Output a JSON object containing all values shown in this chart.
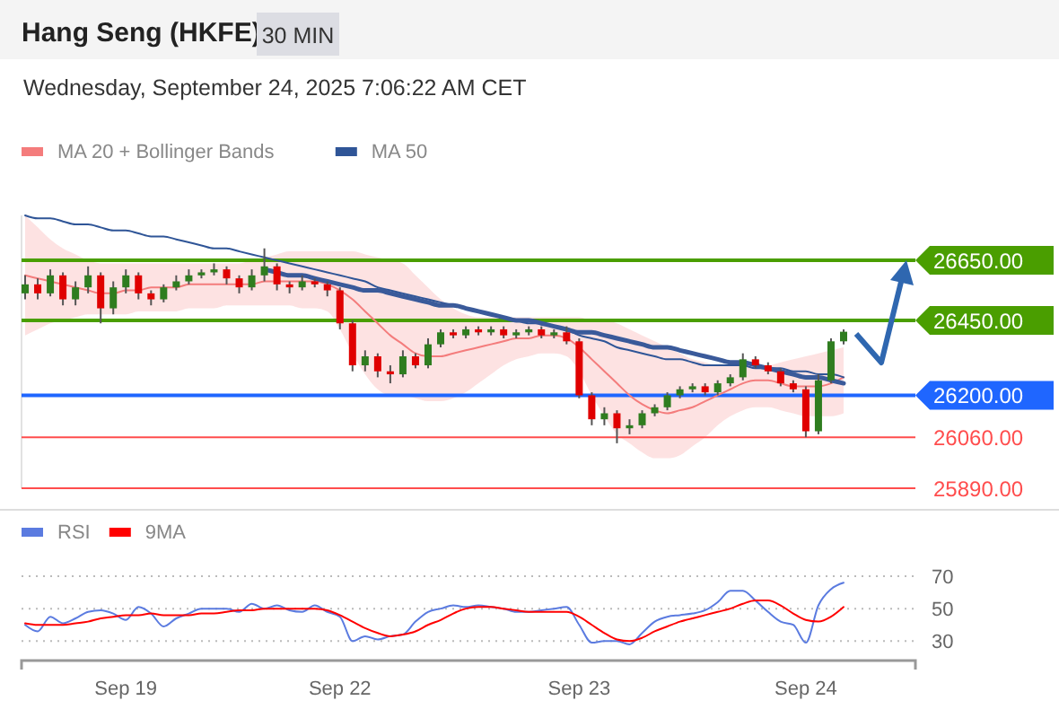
{
  "chart_data": [
    {
      "type": "candlestick",
      "title": "Hang Seng (HKFE)",
      "subtitle": "Wednesday, September 24, 2025 7:06:22 AM CET",
      "annotations": [
        "30 MIN"
      ],
      "ohlc": [
        [
          26540,
          26600,
          26520,
          26570
        ],
        [
          26570,
          26590,
          26520,
          26540
        ],
        [
          26540,
          26620,
          26530,
          26600
        ],
        [
          26600,
          26610,
          26500,
          26520
        ],
        [
          26520,
          26580,
          26500,
          26560
        ],
        [
          26560,
          26630,
          26540,
          26600
        ],
        [
          26600,
          26610,
          26440,
          26490
        ],
        [
          26490,
          26580,
          26470,
          26560
        ],
        [
          26560,
          26620,
          26540,
          26600
        ],
        [
          26600,
          26610,
          26520,
          26540
        ],
        [
          26540,
          26550,
          26500,
          26520
        ],
        [
          26520,
          26570,
          26510,
          26560
        ],
        [
          26560,
          26600,
          26550,
          26580
        ],
        [
          26580,
          26620,
          26570,
          26600
        ],
        [
          26600,
          26620,
          26590,
          26610
        ],
        [
          26610,
          26640,
          26600,
          26620
        ],
        [
          26620,
          26630,
          26570,
          26590
        ],
        [
          26590,
          26600,
          26540,
          26560
        ],
        [
          26560,
          26620,
          26550,
          26600
        ],
        [
          26600,
          26690,
          26580,
          26630
        ],
        [
          26630,
          26640,
          26550,
          26570
        ],
        [
          26570,
          26580,
          26540,
          26560
        ],
        [
          26560,
          26600,
          26550,
          26580
        ],
        [
          26580,
          26590,
          26560,
          26570
        ],
        [
          26570,
          26580,
          26530,
          26550
        ],
        [
          26550,
          26560,
          26420,
          26440
        ],
        [
          26440,
          26450,
          26280,
          26300
        ],
        [
          26300,
          26350,
          26280,
          26330
        ],
        [
          26330,
          26340,
          26260,
          26280
        ],
        [
          26280,
          26300,
          26240,
          26270
        ],
        [
          26270,
          26350,
          26260,
          26330
        ],
        [
          26330,
          26340,
          26290,
          26300
        ],
        [
          26300,
          26390,
          26290,
          26370
        ],
        [
          26370,
          26420,
          26360,
          26410
        ],
        [
          26410,
          26420,
          26390,
          26400
        ],
        [
          26400,
          26430,
          26390,
          26420
        ],
        [
          26420,
          26430,
          26400,
          26410
        ],
        [
          26410,
          26430,
          26400,
          26420
        ],
        [
          26420,
          26430,
          26390,
          26400
        ],
        [
          26400,
          26420,
          26390,
          26410
        ],
        [
          26410,
          26430,
          26400,
          26420
        ],
        [
          26420,
          26430,
          26390,
          26400
        ],
        [
          26400,
          26420,
          26390,
          26410
        ],
        [
          26410,
          26430,
          26370,
          26380
        ],
        [
          26380,
          26390,
          26190,
          26200
        ],
        [
          26200,
          26210,
          26100,
          26120
        ],
        [
          26120,
          26160,
          26100,
          26140
        ],
        [
          26140,
          26150,
          26040,
          26090
        ],
        [
          26090,
          26120,
          26070,
          26100
        ],
        [
          26100,
          26150,
          26090,
          26140
        ],
        [
          26140,
          26170,
          26130,
          26160
        ],
        [
          26160,
          26210,
          26150,
          26200
        ],
        [
          26200,
          26230,
          26190,
          26220
        ],
        [
          26220,
          26240,
          26210,
          26230
        ],
        [
          26230,
          26240,
          26200,
          26210
        ],
        [
          26210,
          26250,
          26200,
          26240
        ],
        [
          26240,
          26270,
          26230,
          26260
        ],
        [
          26260,
          26340,
          26250,
          26320
        ],
        [
          26320,
          26330,
          26290,
          26300
        ],
        [
          26300,
          26310,
          26270,
          26280
        ],
        [
          26280,
          26290,
          26230,
          26240
        ],
        [
          26240,
          26250,
          26210,
          26220
        ],
        [
          26220,
          26230,
          26060,
          26080
        ],
        [
          26080,
          26270,
          26070,
          26250
        ],
        [
          26250,
          26390,
          26240,
          26380
        ],
        [
          26380,
          26420,
          26370,
          26412
        ]
      ],
      "series": [
        {
          "type": "line",
          "name": "MA 20 + Bollinger Bands",
          "color": "#f47c7c",
          "values": [
            26600,
            26590,
            26580,
            26570,
            26560,
            26550,
            26540,
            26540,
            26550,
            26550,
            26560,
            26560,
            26560,
            26570,
            26570,
            26570,
            26570,
            26570,
            26570,
            26580,
            26580,
            26580,
            26580,
            26580,
            26570,
            26550,
            26520,
            26480,
            26440,
            26400,
            26370,
            26340,
            26330,
            26330,
            26340,
            26350,
            26360,
            26370,
            26380,
            26390,
            26390,
            26400,
            26400,
            26390,
            26360,
            26320,
            26280,
            26240,
            26200,
            26170,
            26150,
            26140,
            26150,
            26160,
            26180,
            26200,
            26220,
            26240,
            26250,
            26250,
            26240,
            26230,
            26230,
            26230,
            26240,
            26260
          ],
          "upper": [
            26800,
            26760,
            26720,
            26690,
            26670,
            26650,
            26640,
            26640,
            26640,
            26640,
            26640,
            26640,
            26640,
            26640,
            26640,
            26640,
            26640,
            26640,
            26650,
            26660,
            26670,
            26680,
            26680,
            26680,
            26680,
            26680,
            26680,
            26670,
            26660,
            26650,
            26640,
            26600,
            26560,
            26520,
            26490,
            26470,
            26460,
            26460,
            26460,
            26460,
            26460,
            26460,
            26460,
            26460,
            26460,
            26450,
            26450,
            26440,
            26420,
            26400,
            26380,
            26360,
            26340,
            26320,
            26310,
            26300,
            26300,
            26300,
            26300,
            26300,
            26310,
            26320,
            26330,
            26340,
            26350,
            26360
          ],
          "lower": [
            26400,
            26420,
            26440,
            26450,
            26460,
            26470,
            26470,
            26470,
            26470,
            26480,
            26480,
            26480,
            26480,
            26490,
            26490,
            26490,
            26500,
            26500,
            26500,
            26500,
            26500,
            26500,
            26490,
            26490,
            26480,
            26420,
            26340,
            26270,
            26220,
            26200,
            26200,
            26190,
            26180,
            26180,
            26190,
            26210,
            26240,
            26270,
            26300,
            26320,
            26330,
            26340,
            26340,
            26330,
            26280,
            26200,
            26130,
            26070,
            26040,
            26010,
            25990,
            25990,
            26000,
            26030,
            26060,
            26100,
            26130,
            26150,
            26160,
            26160,
            26150,
            26140,
            26130,
            26130,
            26130,
            26140
          ]
        },
        {
          "type": "line",
          "name": "MA 50",
          "color": "#2f5597",
          "values": [
            26800,
            26790,
            26790,
            26780,
            26770,
            26770,
            26760,
            26750,
            26750,
            26740,
            26730,
            26730,
            26720,
            26710,
            26700,
            26690,
            26690,
            26680,
            26670,
            26660,
            26650,
            26640,
            26630,
            26620,
            26610,
            26600,
            26590,
            26580,
            26560,
            26550,
            26540,
            26530,
            26520,
            26510,
            26500,
            26490,
            26480,
            26470,
            26460,
            26450,
            26440,
            26440,
            26430,
            26420,
            26400,
            26390,
            26380,
            26360,
            26350,
            26340,
            26330,
            26320,
            26320,
            26310,
            26300,
            26300,
            26300,
            26300,
            26290,
            26290,
            26290,
            26280,
            26280,
            26270,
            26270,
            26260
          ]
        },
        {
          "type": "line",
          "color": "#3a5a9a",
          "values": [
            null,
            null,
            null,
            null,
            null,
            null,
            null,
            null,
            null,
            null,
            null,
            null,
            null,
            null,
            null,
            null,
            null,
            null,
            null,
            26620,
            26610,
            26600,
            26600,
            26590,
            26580,
            26570,
            26560,
            26550,
            26550,
            26540,
            26530,
            26520,
            26510,
            26500,
            26500,
            26490,
            26480,
            26470,
            26460,
            26450,
            26450,
            26440,
            26430,
            26420,
            26410,
            26410,
            26400,
            26390,
            26380,
            26370,
            26360,
            26360,
            26350,
            26340,
            26330,
            26320,
            26310,
            26310,
            26300,
            26290,
            26280,
            26270,
            26260,
            26260,
            26250,
            26240
          ]
        }
      ],
      "ref_lines": [
        {
          "axis": "y",
          "value": 26650,
          "label": "26650.00",
          "color": "#4a9e00"
        },
        {
          "axis": "y",
          "value": 26450,
          "label": "26450.00",
          "color": "#4a9e00"
        },
        {
          "axis": "y",
          "value": 26200,
          "label": "26200.00",
          "color": "#1f66ff"
        },
        {
          "axis": "y",
          "value": 26060,
          "label": "26060.00",
          "color": "#ff4d4d"
        },
        {
          "axis": "y",
          "value": 25890,
          "label": "25890.00",
          "color": "#ff4d4d"
        }
      ],
      "ylim": [
        25890,
        26800
      ],
      "legend": "top left"
    },
    {
      "type": "line",
      "categories": [
        null,
        null,
        null,
        null,
        null,
        null,
        null,
        null,
        "Sep 19",
        null,
        null,
        null,
        null,
        null,
        null,
        null,
        null,
        null,
        null,
        null,
        null,
        null,
        null,
        null,
        null,
        "Sep 22",
        null,
        null,
        null,
        null,
        null,
        null,
        null,
        null,
        null,
        null,
        null,
        null,
        null,
        null,
        null,
        null,
        null,
        null,
        "Sep 23",
        null,
        null,
        null,
        null,
        null,
        null,
        null,
        null,
        null,
        null,
        null,
        null,
        null,
        null,
        null,
        null,
        null,
        "Sep 24",
        null,
        null,
        null
      ],
      "series": [
        {
          "name": "RSI",
          "color": "#5b7be0",
          "values": [
            40,
            36,
            45,
            41,
            44,
            48,
            49,
            47,
            43,
            51,
            47,
            39,
            44,
            47,
            50,
            50,
            50,
            48,
            53,
            50,
            52,
            49,
            48,
            52,
            48,
            45,
            30,
            33,
            31,
            33,
            34,
            42,
            48,
            50,
            52,
            51,
            52,
            51,
            50,
            48,
            48,
            49,
            50,
            51,
            40,
            29,
            30,
            30,
            28,
            35,
            42,
            45,
            46,
            47,
            49,
            54,
            61,
            61,
            55,
            48,
            42,
            40,
            29,
            52,
            62,
            66
          ]
        },
        {
          "name": "9MA",
          "color": "#ff0000",
          "values": [
            41,
            40,
            40,
            40,
            41,
            42,
            44,
            45,
            46,
            46,
            47,
            46,
            46,
            46,
            47,
            47,
            48,
            49,
            49,
            50,
            50,
            50,
            50,
            50,
            49,
            46,
            42,
            38,
            35,
            33,
            34,
            36,
            40,
            43,
            47,
            50,
            51,
            51,
            50,
            49,
            48,
            48,
            48,
            48,
            45,
            40,
            35,
            31,
            30,
            32,
            36,
            39,
            42,
            44,
            46,
            48,
            50,
            53,
            55,
            55,
            52,
            47,
            43,
            42,
            45,
            51
          ]
        }
      ],
      "ylim": [
        18,
        70
      ],
      "yticks": [
        30,
        50,
        70
      ],
      "grid": "y",
      "legend": "top left"
    }
  ]
}
